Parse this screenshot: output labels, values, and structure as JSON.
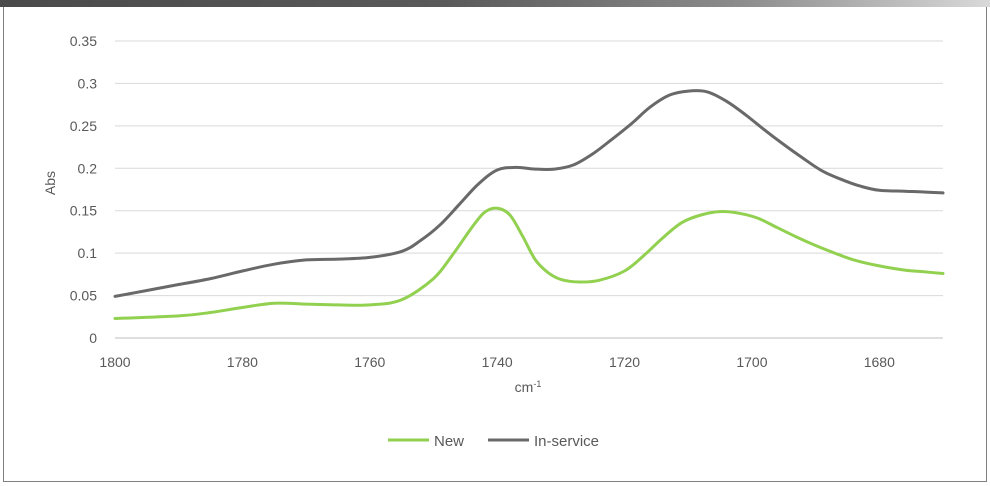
{
  "chart_data": {
    "type": "line",
    "title": "",
    "xlabel": "cm",
    "xlabel_superscript": "-1",
    "ylabel": "Abs",
    "xlim": [
      1800,
      1670
    ],
    "ylim": [
      0,
      0.35
    ],
    "x_ticks": [
      "1800",
      "1780",
      "1760",
      "1740",
      "1720",
      "1700",
      "1680"
    ],
    "y_ticks": [
      "0",
      "0.05",
      "0.1",
      "0.15",
      "0.2",
      "0.25",
      "0.3",
      "0.35"
    ],
    "grid": true,
    "legend_position": "bottom",
    "x_reversed": true,
    "series": [
      {
        "name": "New",
        "color": "#92d050",
        "x": [
          1800,
          1790,
          1785,
          1780,
          1775,
          1770,
          1765,
          1760,
          1755,
          1750,
          1747,
          1744,
          1742,
          1740,
          1738,
          1736,
          1734,
          1732,
          1730,
          1727,
          1724,
          1720,
          1717,
          1714,
          1711,
          1708,
          1705,
          1702,
          1699,
          1696,
          1693,
          1690,
          1687,
          1684,
          1680,
          1676,
          1673,
          1670
        ],
        "y": [
          0.023,
          0.026,
          0.03,
          0.036,
          0.041,
          0.04,
          0.039,
          0.039,
          0.045,
          0.07,
          0.098,
          0.13,
          0.148,
          0.153,
          0.145,
          0.12,
          0.092,
          0.077,
          0.069,
          0.066,
          0.068,
          0.079,
          0.097,
          0.118,
          0.136,
          0.145,
          0.149,
          0.147,
          0.141,
          0.13,
          0.119,
          0.109,
          0.1,
          0.092,
          0.085,
          0.08,
          0.078,
          0.076
        ]
      },
      {
        "name": "In-service",
        "color": "#696969",
        "x": [
          1800,
          1795,
          1790,
          1785,
          1780,
          1775,
          1770,
          1765,
          1760,
          1755,
          1752,
          1749,
          1746,
          1743,
          1740,
          1737,
          1734,
          1731,
          1728,
          1725,
          1722,
          1719,
          1716,
          1713,
          1710,
          1707,
          1704,
          1701,
          1698,
          1695,
          1692,
          1689,
          1686,
          1683,
          1680,
          1676,
          1673,
          1670
        ],
        "y": [
          0.049,
          0.056,
          0.063,
          0.07,
          0.079,
          0.087,
          0.092,
          0.093,
          0.095,
          0.102,
          0.115,
          0.133,
          0.157,
          0.181,
          0.198,
          0.201,
          0.199,
          0.199,
          0.204,
          0.217,
          0.234,
          0.252,
          0.272,
          0.286,
          0.291,
          0.29,
          0.279,
          0.263,
          0.245,
          0.228,
          0.212,
          0.197,
          0.187,
          0.179,
          0.174,
          0.173,
          0.172,
          0.171
        ]
      }
    ]
  }
}
